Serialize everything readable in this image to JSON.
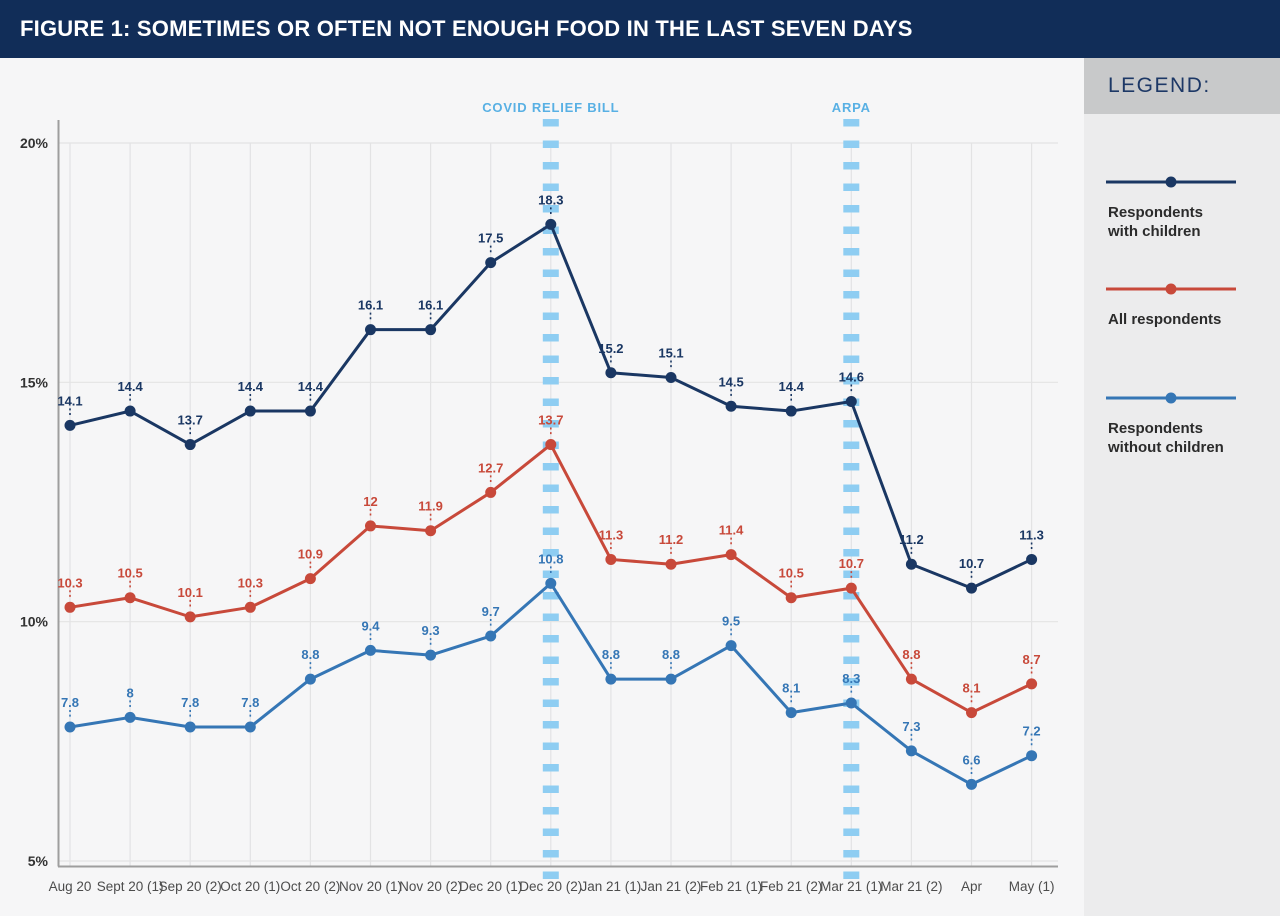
{
  "header": {
    "title": "FIGURE 1: SOMETIMES OR OFTEN NOT ENOUGH FOOD IN THE LAST SEVEN DAYS"
  },
  "legend": {
    "title": "LEGEND:",
    "items": [
      {
        "label_lines": [
          "Respondents",
          "with children"
        ],
        "color": "#1a3763"
      },
      {
        "label_lines": [
          "All respondents"
        ],
        "color": "#c8493a"
      },
      {
        "label_lines": [
          "Respondents",
          "without children"
        ],
        "color": "#3576b5"
      }
    ]
  },
  "colors": {
    "title_bar_bg": "#112d58",
    "page_bg": "#f6f6f7",
    "legend_panel_bg": "#ececed",
    "legend_header_bg": "#c8c9ca",
    "gridline": "#e3e3e4",
    "axis": "#9e9e9e",
    "annotation_dash": "#8ecdf2",
    "annotation_label": "#58b0e4"
  },
  "chart_data": {
    "type": "line",
    "title": "FIGURE 1: SOMETIMES OR OFTEN NOT ENOUGH FOOD IN THE LAST SEVEN DAYS",
    "xlabel": "",
    "ylabel": "",
    "ylim": [
      5,
      20
    ],
    "y_ticks": [
      "5%",
      "10%",
      "15%",
      "20%"
    ],
    "grid": true,
    "legend_position": "right",
    "categories": [
      "Aug 20",
      "Sept 20 (1)",
      "Sep 20 (2)",
      "Oct 20 (1)",
      "Oct 20 (2)",
      "Nov 20 (1)",
      "Nov 20 (2)",
      "Dec 20 (1)",
      "Dec 20 (2)",
      "Jan 21 (1)",
      "Jan 21 (2)",
      "Feb 21 (1)",
      "Feb 21 (2)",
      "Mar 21 (1)",
      "Mar 21 (2)",
      "Apr",
      "May (1)"
    ],
    "series": [
      {
        "name": "Respondents with children",
        "color": "#1a3763",
        "values": [
          14.1,
          14.4,
          13.7,
          14.4,
          14.4,
          16.1,
          16.1,
          17.5,
          18.3,
          15.2,
          15.1,
          14.5,
          14.4,
          14.6,
          11.2,
          10.7,
          11.3
        ]
      },
      {
        "name": "All respondents",
        "color": "#c8493a",
        "values": [
          10.3,
          10.5,
          10.1,
          10.3,
          10.9,
          12,
          11.9,
          12.7,
          13.7,
          11.3,
          11.2,
          11.4,
          10.5,
          10.7,
          8.8,
          8.1,
          8.7
        ]
      },
      {
        "name": "Respondents without children",
        "color": "#3576b5",
        "values": [
          7.8,
          8,
          7.8,
          7.8,
          8.8,
          9.4,
          9.3,
          9.7,
          10.8,
          8.8,
          8.8,
          9.5,
          8.1,
          8.3,
          7.3,
          6.6,
          7.2
        ]
      }
    ],
    "annotations": [
      {
        "label": "COVID RELIEF BILL",
        "category": "Dec 20 (2)",
        "category_index": 8
      },
      {
        "label": "ARPA",
        "category": "Mar 21 (1)",
        "category_index": 13
      }
    ]
  }
}
